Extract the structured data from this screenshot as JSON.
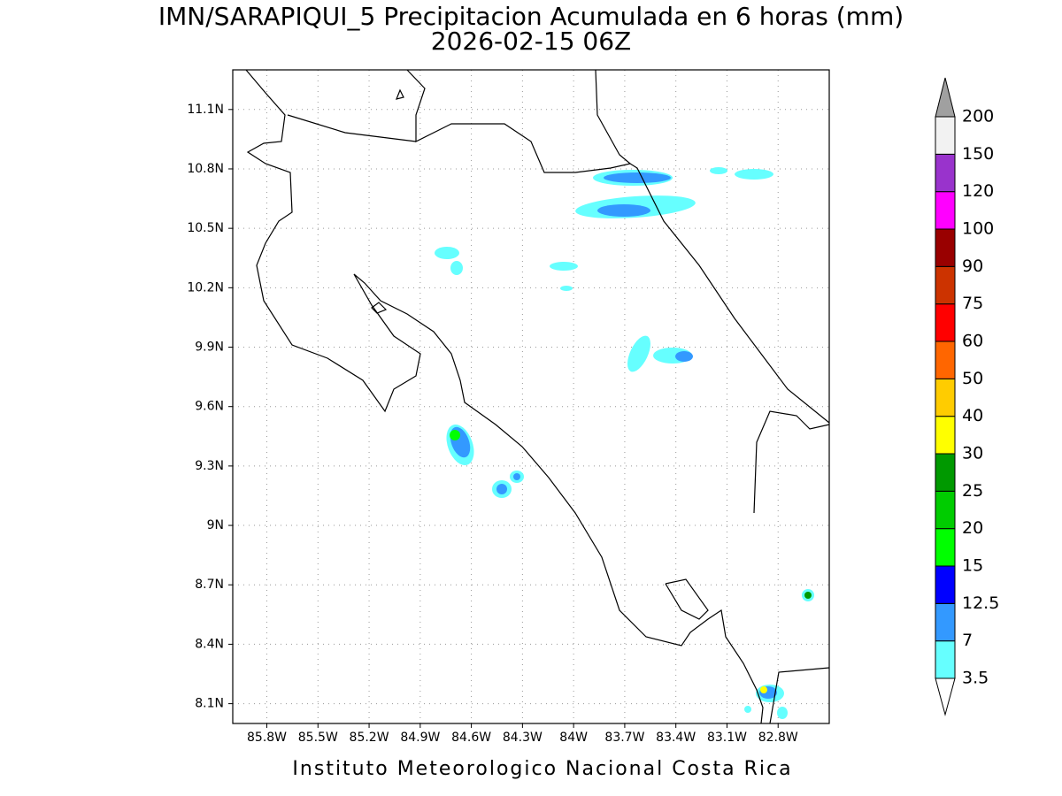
{
  "title": "IMN/SARAPIQUI_5 Precipitacion Acumulada en 6 horas (mm)",
  "subtitle": "2026-02-15 06Z",
  "footer": "Instituto Meteorologico Nacional Costa Rica",
  "map": {
    "xlim": [
      -86.0,
      -82.5
    ],
    "ylim": [
      8.0,
      11.3
    ],
    "grid": true,
    "xticks": [
      {
        "value": -85.8,
        "label": "85.8W"
      },
      {
        "value": -85.5,
        "label": "85.5W"
      },
      {
        "value": -85.2,
        "label": "85.2W"
      },
      {
        "value": -84.9,
        "label": "84.9W"
      },
      {
        "value": -84.6,
        "label": "84.6W"
      },
      {
        "value": -84.3,
        "label": "84.3W"
      },
      {
        "value": -84,
        "label": "84W"
      },
      {
        "value": -83.7,
        "label": "83.7W"
      },
      {
        "value": -83.4,
        "label": "83.4W"
      },
      {
        "value": -83.1,
        "label": "83.1W"
      },
      {
        "value": -82.8,
        "label": "82.8W"
      }
    ],
    "yticks": [
      {
        "value": 11.1,
        "label": "11.1N"
      },
      {
        "value": 10.8,
        "label": "10.8N"
      },
      {
        "value": 10.5,
        "label": "10.5N"
      },
      {
        "value": 10.2,
        "label": "10.2N"
      },
      {
        "value": 9.9,
        "label": "9.9N"
      },
      {
        "value": 9.6,
        "label": "9.6N"
      },
      {
        "value": 9.3,
        "label": "9.3N"
      },
      {
        "value": 9,
        "label": "9N"
      },
      {
        "value": 8.7,
        "label": "8.7N"
      },
      {
        "value": 8.4,
        "label": "8.4N"
      },
      {
        "value": 8.1,
        "label": "8.1N"
      }
    ]
  },
  "colorbar": {
    "levels": [
      3.5,
      7,
      12.5,
      15,
      20,
      25,
      30,
      40,
      50,
      60,
      75,
      90,
      100,
      120,
      150,
      200
    ],
    "colors": [
      "#66ffff",
      "#3399ff",
      "#0000ff",
      "#00ff00",
      "#00cc00",
      "#009900",
      "#ffff00",
      "#ffcc00",
      "#ff6600",
      "#ff0000",
      "#cc3300",
      "#990000",
      "#ff00ff",
      "#9933cc",
      "#f2f2f2"
    ],
    "below_color": "#ffffff",
    "above_color": "#a0a0a0"
  }
}
